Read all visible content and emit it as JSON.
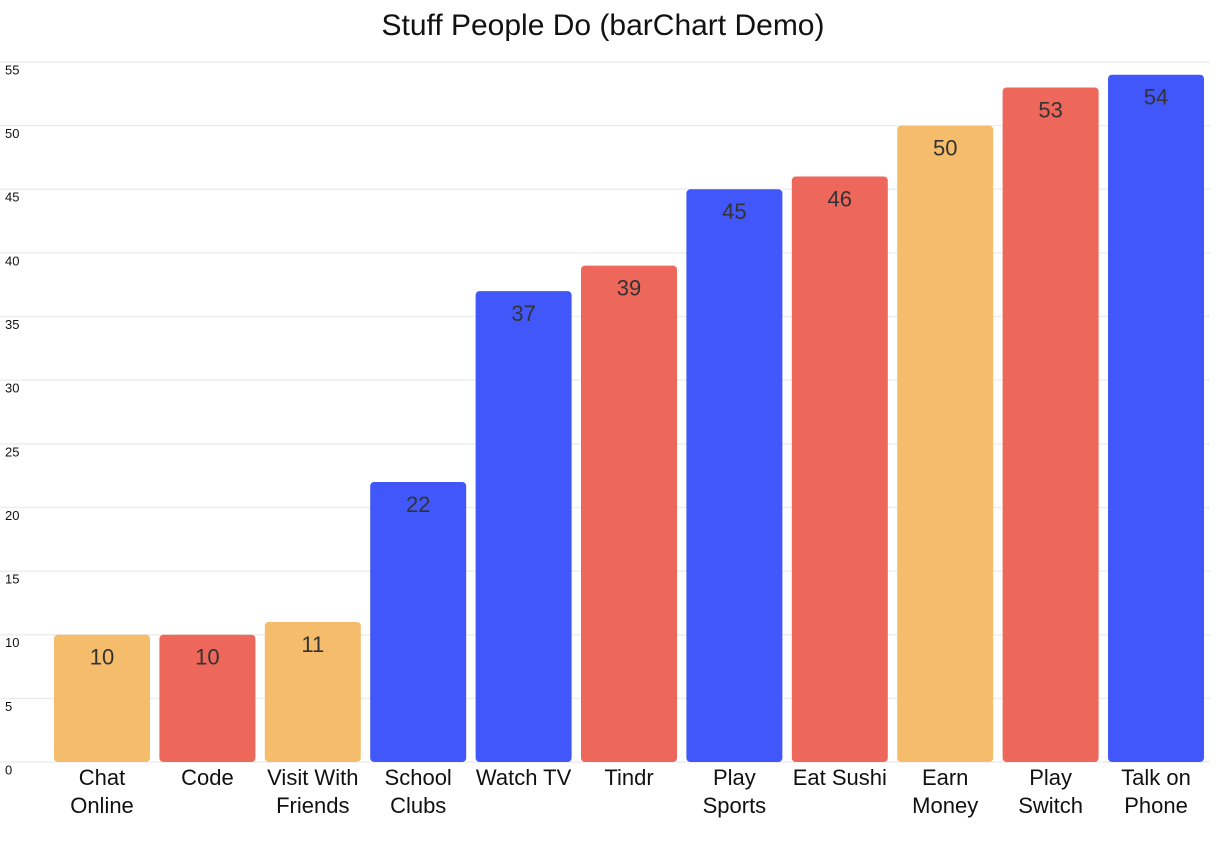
{
  "chart_data": {
    "type": "bar",
    "title": "Stuff People Do (barChart Demo)",
    "categories": [
      "Chat Online",
      "Code",
      "Visit With Friends",
      "School Clubs",
      "Watch TV",
      "Tindr",
      "Play Sports",
      "Eat Sushi",
      "Earn Money",
      "Play Switch",
      "Talk on Phone"
    ],
    "values": [
      10,
      10,
      11,
      22,
      37,
      39,
      45,
      46,
      50,
      53,
      54
    ],
    "colors": [
      "#f4bc6b",
      "#ee675b",
      "#f4bc6b",
      "#4157f9",
      "#4157f9",
      "#ee675b",
      "#4157f9",
      "#ee675b",
      "#f4bc6b",
      "#ee675b",
      "#4157f9"
    ],
    "ylim": [
      0,
      55
    ],
    "yticks": [
      0,
      5,
      10,
      15,
      20,
      25,
      30,
      35,
      40,
      45,
      50,
      55
    ],
    "grid": true
  }
}
